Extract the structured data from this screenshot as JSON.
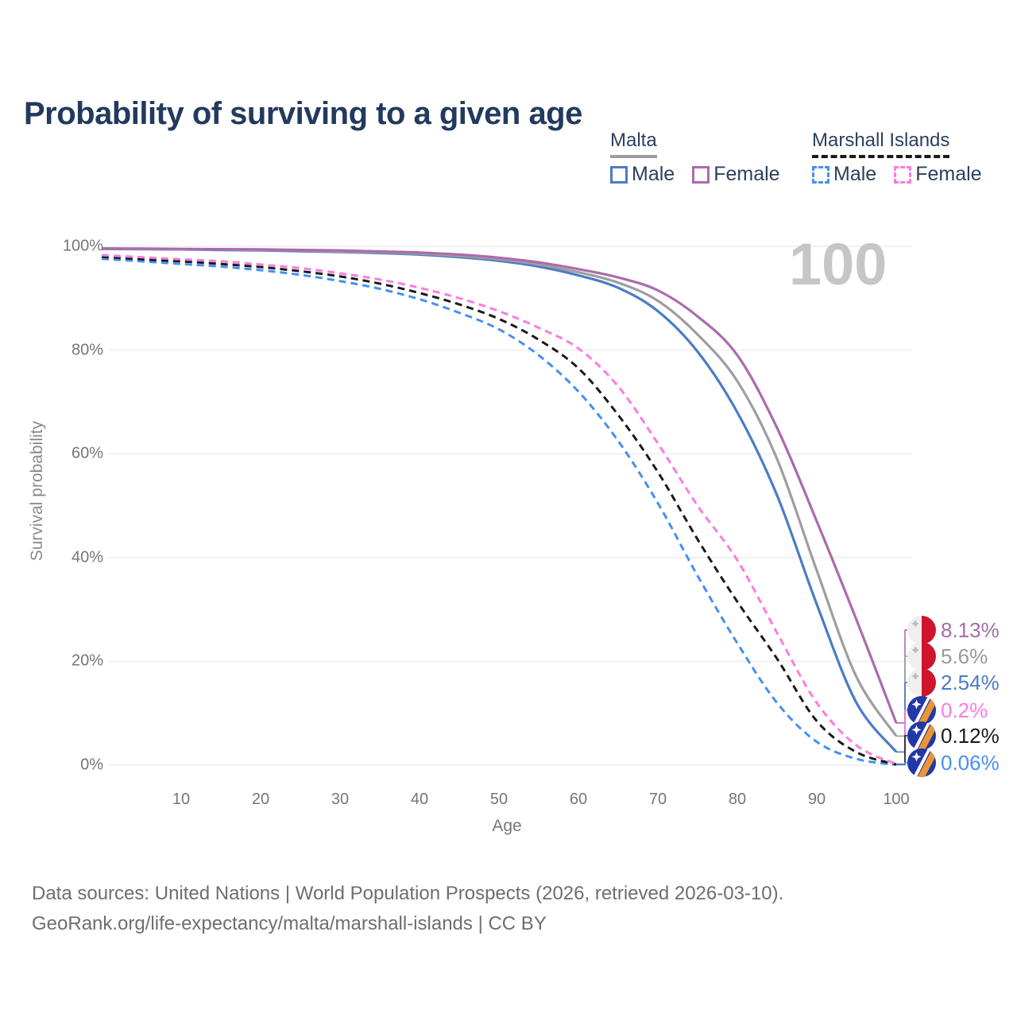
{
  "title": "Probability of surviving to a given age",
  "watermark": "100",
  "legend": {
    "position": "top-right",
    "groups": [
      {
        "name": "Malta",
        "line_style": "solid",
        "underline_color": "#9e9e9e",
        "items": [
          {
            "label": "Male",
            "color": "#4a7cc7",
            "style": "solid"
          },
          {
            "label": "Female",
            "color": "#ad6aad",
            "style": "solid"
          }
        ]
      },
      {
        "name": "Marshall Islands",
        "line_style": "dashed",
        "underline_color": "#1a1a1a",
        "items": [
          {
            "label": "Male",
            "color": "#4590f2",
            "style": "dashed"
          },
          {
            "label": "Female",
            "color": "#fb7ce1",
            "style": "dashed"
          }
        ]
      }
    ]
  },
  "chart_data": {
    "type": "line",
    "title": "Probability of surviving to a given age",
    "xlabel": "Age",
    "ylabel": "Survival probability",
    "xlim": [
      0,
      101.5
    ],
    "ylim": [
      0,
      100
    ],
    "grid": "horizontal",
    "xticks": [
      10,
      20,
      30,
      40,
      50,
      60,
      70,
      80,
      90,
      100
    ],
    "yticks": [
      {
        "label": "0%",
        "value": 0
      },
      {
        "label": "20%",
        "value": 20
      },
      {
        "label": "40%",
        "value": 40
      },
      {
        "label": "60%",
        "value": 60
      },
      {
        "label": "80%",
        "value": 80
      },
      {
        "label": "100%",
        "value": 100
      }
    ],
    "x": [
      0,
      5,
      10,
      15,
      20,
      25,
      30,
      35,
      40,
      45,
      50,
      55,
      60,
      65,
      70,
      75,
      80,
      85,
      90,
      95,
      100
    ],
    "series": [
      {
        "name": "Marshall Islands · Male",
        "country": "Marshall Islands",
        "sex": "Male",
        "color": "#4590f2",
        "dash": "dashed",
        "end_label": "0.06%",
        "label_color": "#4590f2",
        "flag": "marshall-islands",
        "values": [
          97.6,
          97.1,
          96.6,
          96.1,
          95.4,
          94.5,
          93.3,
          91.8,
          89.8,
          87.2,
          84.0,
          79.0,
          72.0,
          62.5,
          50.5,
          36.5,
          23.5,
          12.0,
          4.5,
          1.2,
          0.06
        ]
      },
      {
        "name": "Marshall Islands · Both sexes",
        "country": "Marshall Islands",
        "sex": "Both",
        "color": "#1a1a1a",
        "dash": "dashed",
        "end_label": "0.12%",
        "label_color": "#1a1a1a",
        "flag": "marshall-islands",
        "values": [
          98.0,
          97.5,
          97.1,
          96.6,
          96.0,
          95.2,
          94.2,
          92.8,
          91.0,
          88.8,
          86.0,
          82.0,
          76.5,
          67.5,
          56.5,
          43.5,
          31.5,
          20.5,
          8.5,
          2.5,
          0.12
        ]
      },
      {
        "name": "Marshall Islands · Female",
        "country": "Marshall Islands",
        "sex": "Female",
        "color": "#fb7ce1",
        "dash": "dashed",
        "end_label": "0.2%",
        "label_color": "#fb7ce1",
        "flag": "marshall-islands",
        "values": [
          98.3,
          97.9,
          97.5,
          97.1,
          96.5,
          95.8,
          94.8,
          93.6,
          92.0,
          90.0,
          87.5,
          84.3,
          80.3,
          73.0,
          62.0,
          50.0,
          39.5,
          25.5,
          12.0,
          3.8,
          0.2
        ]
      },
      {
        "name": "Malta · Male",
        "country": "Malta",
        "sex": "Male",
        "color": "#4a7cc7",
        "dash": "solid",
        "end_label": "2.54%",
        "label_color": "#4a7cc7",
        "flag": "malta",
        "values": [
          99.5,
          99.45,
          99.4,
          99.3,
          99.2,
          99.05,
          98.9,
          98.7,
          98.4,
          97.9,
          97.2,
          96.1,
          94.4,
          92.0,
          87.5,
          79.7,
          68.0,
          52.0,
          31.0,
          12.0,
          2.54
        ]
      },
      {
        "name": "Malta · Both sexes",
        "country": "Malta",
        "sex": "Both",
        "color": "#9e9e9e",
        "dash": "solid",
        "end_label": "5.6%",
        "label_color": "#9a9a9a",
        "flag": "malta",
        "values": [
          99.55,
          99.5,
          99.45,
          99.4,
          99.3,
          99.2,
          99.0,
          98.85,
          98.6,
          98.15,
          97.5,
          96.5,
          95.0,
          93.0,
          89.5,
          83.0,
          74.0,
          59.0,
          37.5,
          17.0,
          5.6
        ]
      },
      {
        "name": "Malta · Female",
        "country": "Malta",
        "sex": "Female",
        "color": "#ad6aad",
        "dash": "solid",
        "end_label": "8.13%",
        "label_color": "#a96ba9",
        "flag": "malta",
        "values": [
          99.6,
          99.55,
          99.5,
          99.45,
          99.4,
          99.3,
          99.2,
          99.0,
          98.8,
          98.4,
          97.8,
          96.9,
          95.6,
          94.0,
          91.5,
          86.5,
          79.0,
          65.0,
          47.0,
          28.0,
          8.13
        ]
      }
    ]
  },
  "flag_colors": {
    "malta_white": "#efefef",
    "malta_red": "#cf142b",
    "malta_cross": "#b9b9b9",
    "mi_blue": "#2038a8",
    "mi_orange": "#ef9432",
    "mi_white": "#ffffff"
  },
  "footer": {
    "line1": "Data sources: United Nations | World Population Prospects (2026, retrieved 2026-03-10).",
    "line2": "GeoRank.org/life-expectancy/malta/marshall-islands | CC BY"
  }
}
